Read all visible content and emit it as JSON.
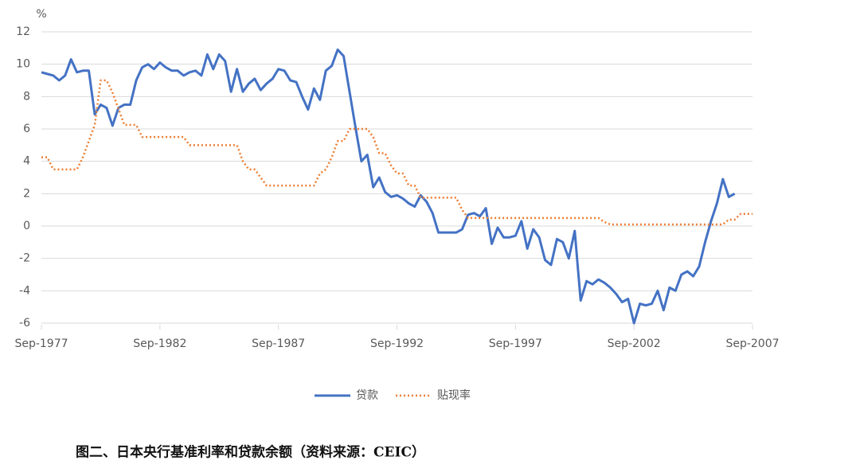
{
  "chart_data": {
    "type": "line",
    "y_unit": "%",
    "x": [
      "1977-09",
      "1977-12",
      "1978-03",
      "1978-06",
      "1978-09",
      "1978-12",
      "1979-03",
      "1979-06",
      "1979-09",
      "1979-12",
      "1980-03",
      "1980-06",
      "1980-09",
      "1980-12",
      "1981-03",
      "1981-06",
      "1981-09",
      "1981-12",
      "1982-03",
      "1982-06",
      "1982-09",
      "1982-12",
      "1983-03",
      "1983-06",
      "1983-09",
      "1983-12",
      "1984-03",
      "1984-06",
      "1984-09",
      "1984-12",
      "1985-03",
      "1985-06",
      "1985-09",
      "1985-12",
      "1986-03",
      "1986-06",
      "1986-09",
      "1986-12",
      "1987-03",
      "1987-06",
      "1987-09",
      "1987-12",
      "1988-03",
      "1988-06",
      "1988-09",
      "1988-12",
      "1989-03",
      "1989-06",
      "1989-09",
      "1989-12",
      "1990-03",
      "1990-06",
      "1990-09",
      "1990-12",
      "1991-03",
      "1991-06",
      "1991-09",
      "1991-12",
      "1992-03",
      "1992-06",
      "1992-09",
      "1992-12",
      "1993-03",
      "1993-06",
      "1993-09",
      "1993-12",
      "1994-03",
      "1994-06",
      "1994-09",
      "1994-12",
      "1995-03",
      "1995-06",
      "1995-09",
      "1995-12",
      "1996-03",
      "1996-06",
      "1996-09",
      "1996-12",
      "1997-03",
      "1997-06",
      "1997-09",
      "1997-12",
      "1998-03",
      "1998-06",
      "1998-09",
      "1998-12",
      "1999-03",
      "1999-06",
      "1999-09",
      "1999-12",
      "2000-03",
      "2000-06",
      "2000-09",
      "2000-12",
      "2001-03",
      "2001-06",
      "2001-09",
      "2001-12",
      "2002-03",
      "2002-06",
      "2002-09",
      "2002-12",
      "2003-03",
      "2003-06",
      "2003-09",
      "2003-12",
      "2004-03",
      "2004-06",
      "2004-09",
      "2004-12",
      "2005-03",
      "2005-06",
      "2005-09",
      "2005-12",
      "2006-03",
      "2006-06",
      "2006-09",
      "2006-12",
      "2007-03",
      "2007-06",
      "2007-09"
    ],
    "series": [
      {
        "name": "贷款",
        "color": "#4472c4",
        "style": "solid",
        "values": [
          9.5,
          9.4,
          9.3,
          9.0,
          9.3,
          10.3,
          9.5,
          9.6,
          9.6,
          6.9,
          7.5,
          7.3,
          6.2,
          7.3,
          7.5,
          7.5,
          9.0,
          9.8,
          10.0,
          9.7,
          10.1,
          9.8,
          9.6,
          9.6,
          9.3,
          9.5,
          9.6,
          9.3,
          10.6,
          9.7,
          10.6,
          10.2,
          8.3,
          9.7,
          8.3,
          8.8,
          9.1,
          8.4,
          8.8,
          9.1,
          9.7,
          9.6,
          9.0,
          8.9,
          8.0,
          7.2,
          8.5,
          7.8,
          9.6,
          9.9,
          10.9,
          10.5,
          8.3,
          6.1,
          4.0,
          4.4,
          2.4,
          3.0,
          2.1,
          1.8,
          1.9,
          1.7,
          1.4,
          1.2,
          1.9,
          1.5,
          0.8,
          -0.4,
          -0.4,
          -0.4,
          -0.4,
          -0.2,
          0.7,
          0.8,
          0.6,
          1.1,
          -1.1,
          -0.1,
          -0.7,
          -0.7,
          -0.6,
          0.3,
          -1.4,
          -0.2,
          -0.7,
          -2.1,
          -2.4,
          -0.8,
          -1.0,
          -2.0,
          -0.3,
          -4.6,
          -3.4,
          -3.6,
          -3.3,
          -3.5,
          -3.8,
          -4.2,
          -4.7,
          -4.5,
          -6.0,
          -4.8,
          -4.9,
          -4.8,
          -4.0,
          -5.2,
          -3.8,
          -4.0,
          -3.0,
          -2.8,
          -3.1,
          -2.5,
          -1.0,
          0.3,
          1.4,
          2.9,
          1.8,
          2.0,
          null,
          null,
          null
        ]
      },
      {
        "name": "贴现率",
        "color": "#ed7d31",
        "style": "dotted",
        "values": [
          4.25,
          4.25,
          3.5,
          3.5,
          3.5,
          3.5,
          3.5,
          4.25,
          5.25,
          6.25,
          9.0,
          9.0,
          8.25,
          7.25,
          6.25,
          6.25,
          6.25,
          5.5,
          5.5,
          5.5,
          5.5,
          5.5,
          5.5,
          5.5,
          5.5,
          5.0,
          5.0,
          5.0,
          5.0,
          5.0,
          5.0,
          5.0,
          5.0,
          5.0,
          4.0,
          3.5,
          3.5,
          3.0,
          2.5,
          2.5,
          2.5,
          2.5,
          2.5,
          2.5,
          2.5,
          2.5,
          2.5,
          3.25,
          3.5,
          4.25,
          5.25,
          5.25,
          6.0,
          6.0,
          6.0,
          6.0,
          5.5,
          4.5,
          4.5,
          3.75,
          3.25,
          3.25,
          2.5,
          2.5,
          1.75,
          1.75,
          1.75,
          1.75,
          1.75,
          1.75,
          1.75,
          1.0,
          0.5,
          0.5,
          0.5,
          0.5,
          0.5,
          0.5,
          0.5,
          0.5,
          0.5,
          0.5,
          0.5,
          0.5,
          0.5,
          0.5,
          0.5,
          0.5,
          0.5,
          0.5,
          0.5,
          0.5,
          0.5,
          0.5,
          0.5,
          0.25,
          0.1,
          0.1,
          0.1,
          0.1,
          0.1,
          0.1,
          0.1,
          0.1,
          0.1,
          0.1,
          0.1,
          0.1,
          0.1,
          0.1,
          0.1,
          0.1,
          0.1,
          0.1,
          0.1,
          0.1,
          0.4,
          0.4,
          0.75,
          0.75,
          0.75
        ]
      }
    ],
    "xlim": [
      "1977-09",
      "2007-09"
    ],
    "xticks": [
      {
        "value": "1977-09",
        "label": "Sep-1977"
      },
      {
        "value": "1982-09",
        "label": "Sep-1982"
      },
      {
        "value": "1987-09",
        "label": "Sep-1987"
      },
      {
        "value": "1992-09",
        "label": "Sep-1992"
      },
      {
        "value": "1997-09",
        "label": "Sep-1997"
      },
      {
        "value": "2002-09",
        "label": "Sep-2002"
      },
      {
        "value": "2007-09",
        "label": "Sep-2007"
      }
    ],
    "ylim": [
      -6,
      12
    ],
    "yticks": [
      -6,
      -4,
      -2,
      0,
      2,
      4,
      6,
      8,
      10,
      12
    ],
    "grid": true,
    "legend": "bottom",
    "caption": "图二、日本央行基准利率和贷款余额（资料来源：CEIC）"
  }
}
